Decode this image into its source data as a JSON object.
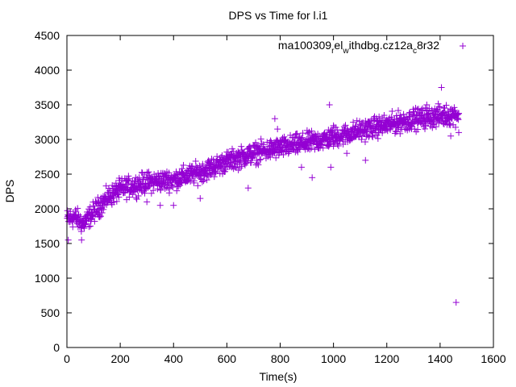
{
  "chart_data": {
    "type": "scatter",
    "title": "DPS vs Time for l.i1",
    "xlabel": "Time(s)",
    "ylabel": "DPS",
    "xlim": [
      0,
      1600
    ],
    "ylim": [
      0,
      4500
    ],
    "xticks": [
      0,
      200,
      400,
      600,
      800,
      1000,
      1200,
      1400,
      1600
    ],
    "yticks": [
      0,
      500,
      1000,
      1500,
      2000,
      2500,
      3000,
      3500,
      4000,
      4500
    ],
    "grid": false,
    "legend_position": "top-right",
    "series": [
      {
        "name": "ma100309_rel_withdbg.cz12a_c8r32",
        "legend_parts": [
          {
            "text": "ma100309",
            "sub": false
          },
          {
            "text": "r",
            "sub": true
          },
          {
            "text": "el",
            "sub": false
          },
          {
            "text": "w",
            "sub": true
          },
          {
            "text": "ithdbg.cz12a",
            "sub": false
          },
          {
            "text": "c",
            "sub": true
          },
          {
            "text": "8r32",
            "sub": false
          }
        ],
        "color": "#9400d3",
        "marker": "+",
        "trend": [
          [
            0,
            1850
          ],
          [
            30,
            1880
          ],
          [
            60,
            1780
          ],
          [
            100,
            1950
          ],
          [
            150,
            2150
          ],
          [
            200,
            2280
          ],
          [
            300,
            2380
          ],
          [
            400,
            2420
          ],
          [
            500,
            2530
          ],
          [
            600,
            2680
          ],
          [
            700,
            2800
          ],
          [
            800,
            2880
          ],
          [
            900,
            2950
          ],
          [
            1000,
            3030
          ],
          [
            1100,
            3130
          ],
          [
            1200,
            3210
          ],
          [
            1300,
            3290
          ],
          [
            1400,
            3340
          ],
          [
            1470,
            3360
          ]
        ],
        "outliers": [
          [
            5,
            1550
          ],
          [
            55,
            1550
          ],
          [
            120,
            2100
          ],
          [
            300,
            2100
          ],
          [
            350,
            2050
          ],
          [
            400,
            2050
          ],
          [
            500,
            2150
          ],
          [
            680,
            2300
          ],
          [
            780,
            3300
          ],
          [
            790,
            3150
          ],
          [
            880,
            2600
          ],
          [
            920,
            2450
          ],
          [
            985,
            3500
          ],
          [
            990,
            2600
          ],
          [
            1000,
            3200
          ],
          [
            1050,
            2800
          ],
          [
            1100,
            3150
          ],
          [
            1120,
            2700
          ],
          [
            1250,
            3350
          ],
          [
            1300,
            3400
          ],
          [
            1350,
            3500
          ],
          [
            1405,
            3750
          ],
          [
            1440,
            3050
          ],
          [
            1460,
            650
          ],
          [
            1470,
            3100
          ]
        ],
        "point_count": 1470,
        "spread": 110
      }
    ]
  }
}
